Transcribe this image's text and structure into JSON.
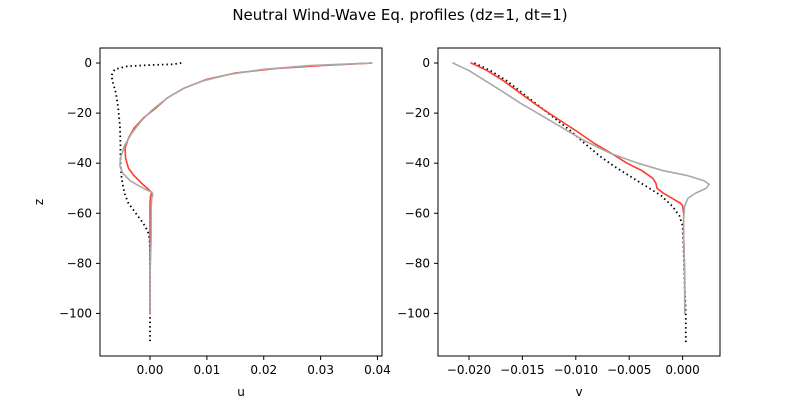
{
  "chart_data": {
    "title": "Neutral Wind-Wave Eq. profiles (dz=1, dt=1)",
    "panels": [
      {
        "type": "line",
        "xlabel": "u",
        "ylabel": "z",
        "xlim": [
          -0.0088,
          0.0408
        ],
        "ylim": [
          -117,
          6
        ],
        "xticks": [
          0.0,
          0.01,
          0.02,
          0.03,
          0.04
        ],
        "xtick_labels": [
          "0.00",
          "0.01",
          "0.02",
          "0.03",
          "0.04"
        ],
        "yticks": [
          0,
          -20,
          -40,
          -60,
          -80,
          -100
        ],
        "ytick_labels": [
          "0",
          "−20",
          "−40",
          "−60",
          "−80",
          "−100"
        ],
        "series": [
          {
            "color": "#000000",
            "style": "dotted",
            "points": [
              [
                0.0055,
                0
              ],
              [
                0.004,
                -0.5
              ],
              [
                0.0,
                -0.8
              ],
              [
                -0.004,
                -1.3
              ],
              [
                -0.0062,
                -2.5
              ],
              [
                -0.0068,
                -5
              ],
              [
                -0.0065,
                -8
              ],
              [
                -0.006,
                -12
              ],
              [
                -0.0056,
                -18
              ],
              [
                -0.0053,
                -25
              ],
              [
                -0.0052,
                -32
              ],
              [
                -0.0052,
                -40
              ],
              [
                -0.005,
                -46
              ],
              [
                -0.0045,
                -52
              ],
              [
                -0.0038,
                -56
              ],
              [
                -0.0025,
                -60
              ],
              [
                -0.0012,
                -64
              ],
              [
                -0.0004,
                -67
              ],
              [
                -0.0001,
                -70
              ],
              [
                0.0,
                -75
              ],
              [
                0.0,
                -85
              ],
              [
                0.0,
                -100
              ],
              [
                0.0,
                -112
              ]
            ]
          },
          {
            "color": "#ff3b30",
            "style": "solid",
            "points": [
              [
                0.039,
                0
              ],
              [
                0.03,
                -1
              ],
              [
                0.022,
                -2.2
              ],
              [
                0.015,
                -4
              ],
              [
                0.01,
                -6.5
              ],
              [
                0.006,
                -10
              ],
              [
                0.003,
                -14
              ],
              [
                0.001,
                -18
              ],
              [
                -0.0012,
                -22
              ],
              [
                -0.0028,
                -26
              ],
              [
                -0.0038,
                -30
              ],
              [
                -0.0044,
                -34
              ],
              [
                -0.0043,
                -38
              ],
              [
                -0.0038,
                -42
              ],
              [
                -0.0028,
                -45
              ],
              [
                -0.0015,
                -48
              ],
              [
                -0.0005,
                -50
              ],
              [
                0.0,
                -51
              ],
              [
                0.0003,
                -52
              ],
              [
                0.0001,
                -53
              ],
              [
                0.0,
                -56
              ],
              [
                0.0,
                -70
              ],
              [
                0.0,
                -100
              ]
            ]
          },
          {
            "color": "#a9a9a9",
            "style": "solid",
            "points": [
              [
                0.039,
                0
              ],
              [
                0.028,
                -1
              ],
              [
                0.02,
                -2.5
              ],
              [
                0.014,
                -4.5
              ],
              [
                0.0095,
                -7
              ],
              [
                0.006,
                -10
              ],
              [
                0.003,
                -14
              ],
              [
                0.0005,
                -18.5
              ],
              [
                -0.0015,
                -23
              ],
              [
                -0.0032,
                -28
              ],
              [
                -0.0045,
                -33
              ],
              [
                -0.0052,
                -38
              ],
              [
                -0.0053,
                -41
              ],
              [
                -0.0048,
                -44
              ],
              [
                -0.0035,
                -47
              ],
              [
                -0.002,
                -49
              ],
              [
                -0.0008,
                -50.5
              ],
              [
                0.0003,
                -51.5
              ],
              [
                0.0005,
                -52.5
              ],
              [
                0.0003,
                -54
              ],
              [
                0.0002,
                -58
              ],
              [
                0.0002,
                -70
              ],
              [
                0.0,
                -85
              ],
              [
                0.0,
                -100
              ]
            ]
          }
        ]
      },
      {
        "type": "line",
        "xlabel": "v",
        "ylabel": "",
        "xlim": [
          -0.0229,
          0.0035
        ],
        "ylim": [
          -117,
          6
        ],
        "xticks": [
          -0.02,
          -0.015,
          -0.01,
          -0.005,
          0.0
        ],
        "xtick_labels": [
          "−0.020",
          "−0.015",
          "−0.010",
          "−0.005",
          "0.000"
        ],
        "yticks": [
          0,
          -20,
          -40,
          -60,
          -80,
          -100
        ],
        "ytick_labels": [
          "0",
          "−20",
          "−40",
          "−60",
          "−80",
          "−100"
        ],
        "series": [
          {
            "color": "#000000",
            "style": "dotted",
            "points": [
              [
                -0.0195,
                0
              ],
              [
                -0.018,
                -3
              ],
              [
                -0.0165,
                -7
              ],
              [
                -0.015,
                -12
              ],
              [
                -0.0135,
                -17
              ],
              [
                -0.012,
                -22
              ],
              [
                -0.0105,
                -27
              ],
              [
                -0.0092,
                -32
              ],
              [
                -0.0078,
                -37
              ],
              [
                -0.0065,
                -41
              ],
              [
                -0.005,
                -45
              ],
              [
                -0.0035,
                -49
              ],
              [
                -0.002,
                -53
              ],
              [
                -0.001,
                -57
              ],
              [
                -0.0003,
                -61
              ],
              [
                0.0,
                -65
              ],
              [
                0.0001,
                -75
              ],
              [
                0.0002,
                -90
              ],
              [
                0.0003,
                -100
              ],
              [
                0.0003,
                -112
              ]
            ]
          },
          {
            "color": "#ff3b30",
            "style": "solid",
            "points": [
              [
                -0.0198,
                0
              ],
              [
                -0.0183,
                -3
              ],
              [
                -0.0168,
                -7
              ],
              [
                -0.0152,
                -12
              ],
              [
                -0.0136,
                -17
              ],
              [
                -0.0118,
                -22
              ],
              [
                -0.01,
                -27
              ],
              [
                -0.0083,
                -32
              ],
              [
                -0.0067,
                -36
              ],
              [
                -0.0052,
                -40
              ],
              [
                -0.0038,
                -43
              ],
              [
                -0.0028,
                -46
              ],
              [
                -0.0025,
                -48
              ],
              [
                -0.0024,
                -50
              ],
              [
                -0.0018,
                -52
              ],
              [
                -0.001,
                -54
              ],
              [
                -0.0002,
                -56
              ],
              [
                0.0,
                -57
              ],
              [
                0.0001,
                -60
              ],
              [
                0.0001,
                -70
              ],
              [
                0.0002,
                -85
              ],
              [
                0.0002,
                -100
              ]
            ]
          },
          {
            "color": "#a9a9a9",
            "style": "solid",
            "points": [
              [
                -0.0215,
                0
              ],
              [
                -0.02,
                -3
              ],
              [
                -0.0185,
                -7
              ],
              [
                -0.017,
                -11
              ],
              [
                -0.0152,
                -16
              ],
              [
                -0.0132,
                -21
              ],
              [
                -0.0112,
                -26
              ],
              [
                -0.0092,
                -31
              ],
              [
                -0.0068,
                -36
              ],
              [
                -0.0042,
                -40
              ],
              [
                -0.0018,
                -43
              ],
              [
                0.0005,
                -45
              ],
              [
                0.002,
                -47
              ],
              [
                0.0025,
                -48.5
              ],
              [
                0.0022,
                -50
              ],
              [
                0.0012,
                -52
              ],
              [
                0.0005,
                -54
              ],
              [
                0.0002,
                -57
              ],
              [
                0.0001,
                -62
              ],
              [
                0.0001,
                -70
              ],
              [
                0.0002,
                -85
              ],
              [
                0.0002,
                -100
              ]
            ]
          }
        ]
      }
    ]
  }
}
